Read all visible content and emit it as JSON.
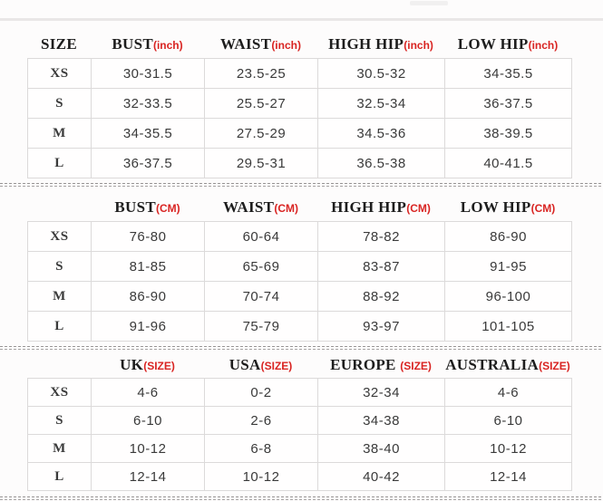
{
  "colors": {
    "accent_red": "#d92422",
    "header_text": "#1e1e1e",
    "cell_text": "#3a3a3a",
    "table_border": "#dcdada",
    "divider_gray": "#979494",
    "top_rule_gray": "#e9e7e7"
  },
  "sections": [
    {
      "name": "measurements-inches",
      "columns": [
        {
          "label": "SIZE",
          "unit": ""
        },
        {
          "label": "BUST",
          "unit": "(inch)"
        },
        {
          "label": "WAIST",
          "unit": "(inch)"
        },
        {
          "label": "HIGH HIP",
          "unit": "(inch)"
        },
        {
          "label": "LOW HIP",
          "unit": "(inch)"
        }
      ],
      "rows": [
        {
          "size": "XS",
          "values": [
            "30-31.5",
            "23.5-25",
            "30.5-32",
            "34-35.5"
          ]
        },
        {
          "size": "S",
          "values": [
            "32-33.5",
            "25.5-27",
            "32.5-34",
            "36-37.5"
          ]
        },
        {
          "size": "M",
          "values": [
            "34-35.5",
            "27.5-29",
            "34.5-36",
            "38-39.5"
          ]
        },
        {
          "size": "L",
          "values": [
            "36-37.5",
            "29.5-31",
            "36.5-38",
            "40-41.5"
          ]
        }
      ]
    },
    {
      "name": "measurements-cm",
      "columns": [
        {
          "label": "",
          "unit": ""
        },
        {
          "label": "BUST",
          "unit": "(CM)"
        },
        {
          "label": "WAIST",
          "unit": "(CM)"
        },
        {
          "label": "HIGH HIP",
          "unit": "(CM)"
        },
        {
          "label": "LOW HIP",
          "unit": "(CM)"
        }
      ],
      "rows": [
        {
          "size": "XS",
          "values": [
            "76-80",
            "60-64",
            "78-82",
            "86-90"
          ]
        },
        {
          "size": "S",
          "values": [
            "81-85",
            "65-69",
            "83-87",
            "91-95"
          ]
        },
        {
          "size": "M",
          "values": [
            "86-90",
            "70-74",
            "88-92",
            "96-100"
          ]
        },
        {
          "size": "L",
          "values": [
            "91-96",
            "75-79",
            "93-97",
            "101-105"
          ]
        }
      ]
    },
    {
      "name": "international-sizes",
      "columns": [
        {
          "label": "",
          "unit": ""
        },
        {
          "label": "UK",
          "unit": "(SIZE)"
        },
        {
          "label": "USA",
          "unit": "(SIZE)"
        },
        {
          "label": "EUROPE ",
          "unit": "(SIZE)"
        },
        {
          "label": "AUSTRALIA",
          "unit": "(SIZE)"
        }
      ],
      "rows": [
        {
          "size": "XS",
          "values": [
            "4-6",
            "0-2",
            "32-34",
            "4-6"
          ]
        },
        {
          "size": "S",
          "values": [
            "6-10",
            "2-6",
            "34-38",
            "6-10"
          ]
        },
        {
          "size": "M",
          "values": [
            "10-12",
            "6-8",
            "38-40",
            "10-12"
          ]
        },
        {
          "size": "L",
          "values": [
            "12-14",
            "10-12",
            "40-42",
            "12-14"
          ]
        }
      ]
    }
  ]
}
